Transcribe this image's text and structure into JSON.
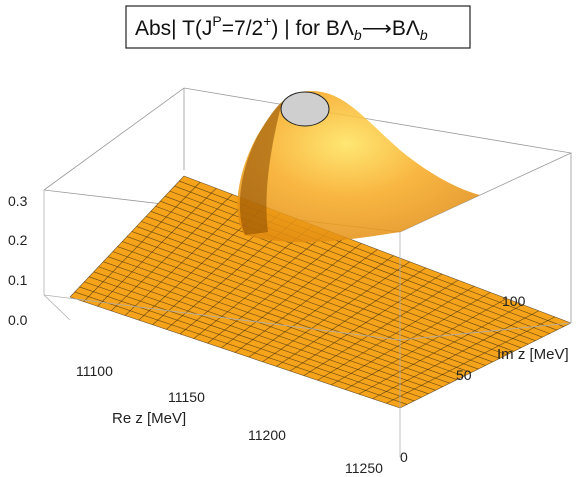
{
  "chart_data": {
    "type": "surface3d",
    "title": {
      "prefix": "Abs| T(J",
      "sup": "P",
      "middle": "=7/2",
      "sup2": "+",
      "suffix": ") |  for  BΛ",
      "sub": "b",
      "arrow": "⟶BΛ",
      "sub2": "b"
    },
    "xlabel": "Re z [MeV]",
    "ylabel": "Im z [MeV]",
    "zlabel": "",
    "x_ticks": [
      "11100",
      "11150",
      "11200",
      "11250"
    ],
    "y_ticks": [
      "0",
      "50",
      "100"
    ],
    "z_ticks": [
      "0.0",
      "0.1",
      "0.2",
      "0.3"
    ],
    "xlim": [
      11070,
      11250
    ],
    "ylim": [
      0,
      140
    ],
    "zlim": [
      0,
      0.3
    ],
    "colors": {
      "surface": "#f5a31a",
      "highlight": "#ffe74a",
      "shadow": "#8a4a00",
      "clip": "#cfcfcf"
    },
    "peak": {
      "re": 11120,
      "im": 95,
      "value_clipped_above": 0.3
    },
    "surface_value_far_field": 0.02
  }
}
